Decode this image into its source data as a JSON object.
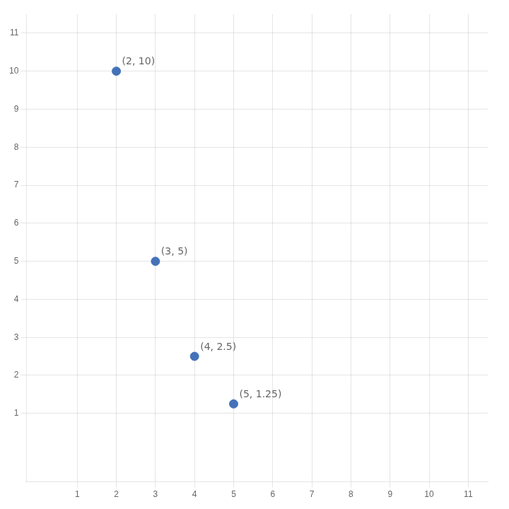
{
  "chart_data": {
    "type": "scatter",
    "x": [
      2,
      3,
      4,
      5
    ],
    "values": [
      10,
      5,
      2.5,
      1.25
    ],
    "value_labels": [
      "(2, 10)",
      "(3, 5)",
      "(4, 2.5)",
      "(5, 1.25)"
    ],
    "data_labels": true,
    "color": "#4472b8",
    "xlim": [
      -0.3,
      11.5
    ],
    "ylim": [
      -0.8,
      11.5
    ],
    "xticks": [
      1,
      2,
      3,
      4,
      5,
      6,
      7,
      8,
      9,
      10,
      11
    ],
    "yticks": [
      1,
      2,
      3,
      4,
      5,
      6,
      7,
      8,
      9,
      10,
      11
    ],
    "grid": true
  }
}
